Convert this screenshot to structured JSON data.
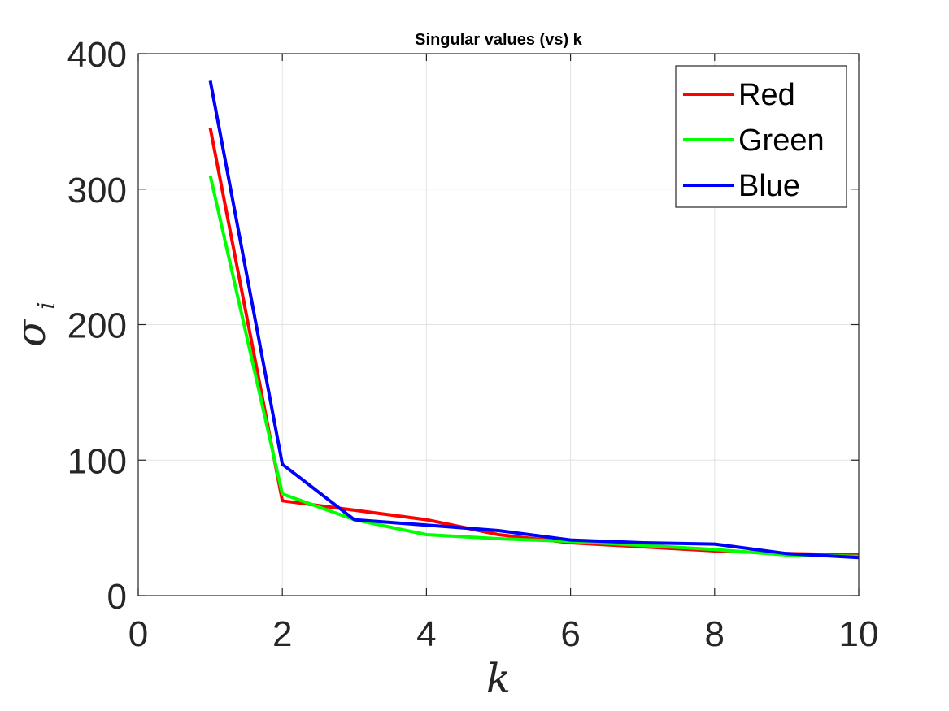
{
  "chart_data": {
    "type": "line",
    "title": "Singular values (vs) k",
    "xlabel": "k",
    "ylabel": "σ",
    "ylabel_subscript": "i",
    "xlim": [
      0,
      10
    ],
    "ylim": [
      0,
      400
    ],
    "xticks": [
      0,
      2,
      4,
      6,
      8,
      10
    ],
    "yticks": [
      0,
      100,
      200,
      300,
      400
    ],
    "grid": true,
    "legend_position": "top-right",
    "x": [
      1,
      2,
      3,
      4,
      5,
      6,
      7,
      8,
      9,
      10
    ],
    "series": [
      {
        "name": "Red",
        "color": "#ff0000",
        "values": [
          345,
          70,
          63,
          56,
          45,
          39,
          36,
          33,
          31,
          30
        ]
      },
      {
        "name": "Green",
        "color": "#00ff00",
        "values": [
          310,
          75,
          56,
          45,
          42,
          40,
          37,
          34,
          30,
          29
        ]
      },
      {
        "name": "Blue",
        "color": "#0000ff",
        "values": [
          380,
          97,
          56,
          52,
          48,
          41,
          39,
          38,
          31,
          28
        ]
      }
    ]
  }
}
